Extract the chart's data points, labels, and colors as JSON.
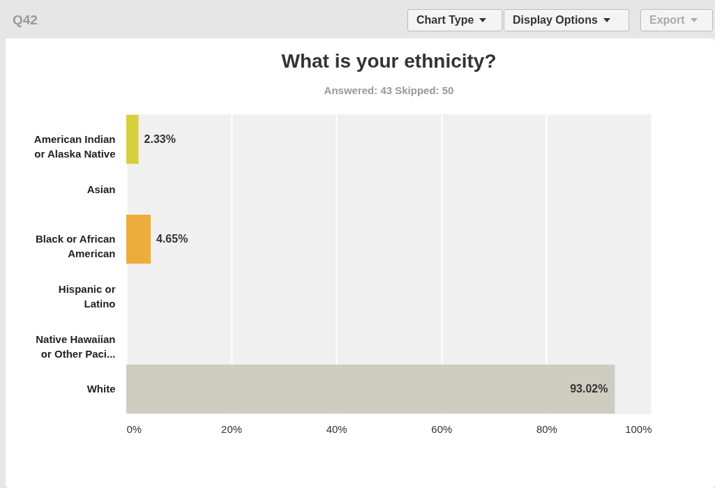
{
  "chart_data": {
    "type": "bar",
    "orientation": "horizontal",
    "title": "What is your ethnicity?",
    "subtitle": "Answered: 43   Skipped: 50",
    "annotations": [
      "Q42",
      "Chart Type",
      "Display Options",
      "Export"
    ],
    "categories": [
      "American Indian or Alaska Native",
      "Asian",
      "Black or African American",
      "Hispanic or Latino",
      "Native Hawaiian or Other Paci...",
      "White"
    ],
    "values": [
      2.33,
      0,
      4.65,
      0,
      0,
      93.02
    ],
    "value_labels": [
      "2.33%",
      null,
      "4.65%",
      null,
      null,
      "93.02%"
    ],
    "colors": [
      "#d5d03c",
      "#8fbf3f",
      "#eeac3c",
      "#6fa8dc",
      "#c97fb8",
      "#cfcdbf"
    ],
    "xlim": [
      0,
      100
    ],
    "xticks": [
      {
        "value": 0,
        "label": "0%"
      },
      {
        "value": 20,
        "label": "20%"
      },
      {
        "value": 40,
        "label": "40%"
      },
      {
        "value": 60,
        "label": "60%"
      },
      {
        "value": 80,
        "label": "80%"
      },
      {
        "value": 100,
        "label": "100%"
      }
    ],
    "grid": "x"
  }
}
